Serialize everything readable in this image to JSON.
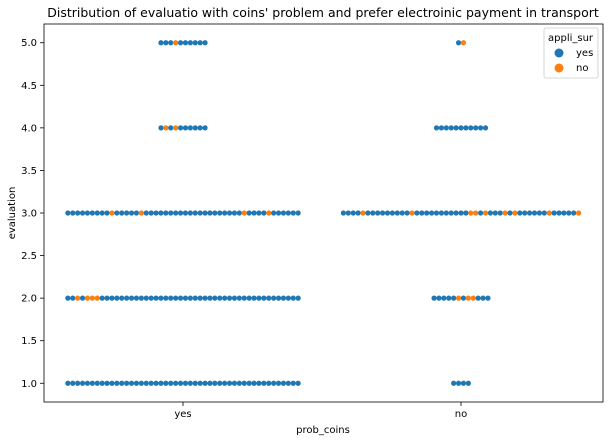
{
  "chart_data": {
    "type": "scatter",
    "subtype": "swarm",
    "title": "Distribution of evaluatio with coins' problem and prefer electroinic payment in transport",
    "xlabel": "prob_coins",
    "ylabel": "evaluation",
    "categories": [
      "yes",
      "no"
    ],
    "ylim": [
      0.78,
      5.22
    ],
    "yticks": [
      "1.0",
      "1.5",
      "2.0",
      "2.5",
      "3.0",
      "3.5",
      "4.0",
      "4.5",
      "5.0"
    ],
    "legend": {
      "title": "appli_sur",
      "entries": [
        "yes",
        "no"
      ],
      "placement": "top-right"
    },
    "colors": {
      "yes": "#1f77b4",
      "no": "#ff7f0e"
    },
    "grid": false,
    "groups": [
      {
        "category": "yes",
        "y": 5.0,
        "points": [
          "yes",
          "yes",
          "yes",
          "no",
          "yes",
          "yes",
          "yes",
          "yes",
          "yes",
          "yes"
        ]
      },
      {
        "category": "yes",
        "y": 4.0,
        "points": [
          "yes",
          "no",
          "yes",
          "no",
          "yes",
          "yes",
          "yes",
          "yes",
          "yes",
          "yes"
        ]
      },
      {
        "category": "yes",
        "y": 3.0,
        "points": [
          "yes",
          "yes",
          "yes",
          "yes",
          "yes",
          "yes",
          "yes",
          "yes",
          "yes",
          "no",
          "yes",
          "yes",
          "yes",
          "yes",
          "yes",
          "no",
          "yes",
          "yes",
          "yes",
          "yes",
          "yes",
          "yes",
          "yes",
          "yes",
          "yes",
          "yes",
          "yes",
          "yes",
          "yes",
          "yes",
          "yes",
          "yes",
          "yes",
          "yes",
          "yes",
          "yes",
          "no",
          "yes",
          "yes",
          "yes",
          "yes",
          "no",
          "yes",
          "yes",
          "yes",
          "yes",
          "yes",
          "yes"
        ]
      },
      {
        "category": "yes",
        "y": 2.0,
        "points": [
          "yes",
          "yes",
          "no",
          "yes",
          "no",
          "no",
          "no",
          "yes",
          "yes",
          "yes",
          "yes",
          "yes",
          "yes",
          "yes",
          "yes",
          "yes",
          "yes",
          "yes",
          "yes",
          "yes",
          "yes",
          "yes",
          "yes",
          "yes",
          "yes",
          "yes",
          "yes",
          "yes",
          "yes",
          "yes",
          "yes",
          "yes",
          "yes",
          "yes",
          "yes",
          "yes",
          "yes",
          "yes",
          "yes",
          "yes",
          "yes",
          "yes",
          "yes",
          "yes",
          "yes",
          "yes",
          "yes",
          "yes"
        ]
      },
      {
        "category": "yes",
        "y": 1.0,
        "points": [
          "yes",
          "yes",
          "yes",
          "yes",
          "yes",
          "yes",
          "yes",
          "yes",
          "yes",
          "yes",
          "yes",
          "yes",
          "yes",
          "yes",
          "yes",
          "yes",
          "yes",
          "yes",
          "yes",
          "yes",
          "yes",
          "yes",
          "yes",
          "yes",
          "yes",
          "yes",
          "yes",
          "yes",
          "yes",
          "yes",
          "yes",
          "yes",
          "yes",
          "yes",
          "yes",
          "yes",
          "yes",
          "yes",
          "yes",
          "yes",
          "yes",
          "yes",
          "yes",
          "yes",
          "yes",
          "yes",
          "yes",
          "yes"
        ]
      },
      {
        "category": "no",
        "y": 5.0,
        "points": [
          "yes",
          "no"
        ]
      },
      {
        "category": "no",
        "y": 4.0,
        "points": [
          "yes",
          "yes",
          "yes",
          "yes",
          "yes",
          "yes",
          "yes",
          "yes",
          "yes",
          "yes",
          "yes"
        ]
      },
      {
        "category": "no",
        "y": 3.0,
        "points": [
          "yes",
          "yes",
          "yes",
          "yes",
          "no",
          "yes",
          "yes",
          "yes",
          "yes",
          "yes",
          "yes",
          "yes",
          "yes",
          "yes",
          "no",
          "yes",
          "yes",
          "yes",
          "yes",
          "yes",
          "yes",
          "yes",
          "yes",
          "yes",
          "yes",
          "yes",
          "no",
          "no",
          "yes",
          "no",
          "yes",
          "yes",
          "yes",
          "no",
          "yes",
          "no",
          "yes",
          "yes",
          "yes",
          "yes",
          "yes",
          "yes",
          "no",
          "yes",
          "yes",
          "yes",
          "yes",
          "yes",
          "no"
        ]
      },
      {
        "category": "no",
        "y": 2.0,
        "points": [
          "yes",
          "yes",
          "yes",
          "yes",
          "yes",
          "no",
          "yes",
          "no",
          "no",
          "yes",
          "yes",
          "yes"
        ]
      },
      {
        "category": "no",
        "y": 1.0,
        "points": [
          "yes",
          "yes",
          "yes",
          "yes"
        ]
      }
    ]
  }
}
